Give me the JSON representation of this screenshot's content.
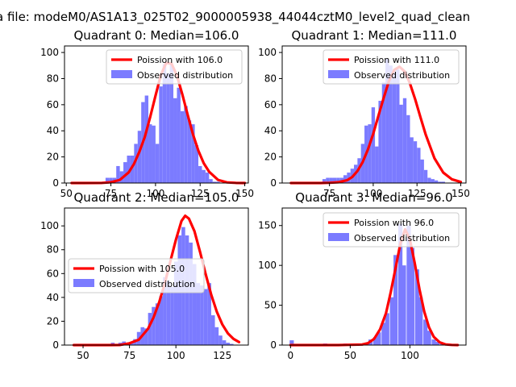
{
  "figure": {
    "suptitle": "a file: modeM0/AS1A13_025T02_9000005938_44044cztM0_level2_quad_clean"
  },
  "colors": {
    "poisson_line": "#ff0000",
    "observed_bars": "#7b7bff"
  },
  "chart_data": [
    {
      "type": "bar",
      "title": "Quadrant 0: Median=106.0",
      "median": 106.0,
      "xlim": [
        49,
        152
      ],
      "ylim": [
        0,
        105
      ],
      "xticks": [
        50,
        75,
        100,
        125,
        150
      ],
      "yticks": [
        0,
        20,
        40,
        60,
        80,
        100
      ],
      "grid": false,
      "legend_position": "upper right",
      "series": [
        {
          "name": "Poission with 106.0",
          "kind": "line",
          "x": [
            53,
            60,
            70,
            75,
            80,
            85,
            88,
            91,
            94,
            97,
            100,
            103,
            106,
            109,
            112,
            115,
            118,
            121,
            124,
            127,
            130,
            135,
            140,
            145,
            150
          ],
          "y": [
            0,
            0,
            0.1,
            0.6,
            2.4,
            8.2,
            14.8,
            24.1,
            35.3,
            50.5,
            66.9,
            82.8,
            92.1,
            91.4,
            82.3,
            68.0,
            52.3,
            37.2,
            24.8,
            15.2,
            8.7,
            2.4,
            0.5,
            0.1,
            0
          ]
        },
        {
          "name": "Observed distribution",
          "kind": "bar",
          "bin_width": 2,
          "x": [
            73,
            75,
            77,
            79,
            81,
            83,
            85,
            87,
            89,
            91,
            93,
            95,
            97,
            99,
            101,
            103,
            105,
            107,
            109,
            111,
            113,
            115,
            117,
            119,
            121,
            123,
            125,
            127,
            129,
            131,
            133,
            135
          ],
          "y": [
            4,
            4,
            4,
            13,
            9,
            16,
            21,
            21,
            30,
            40,
            62,
            67,
            45,
            44,
            30,
            74,
            91,
            84,
            91,
            65,
            73,
            55,
            59,
            48,
            45,
            29,
            13,
            10,
            8,
            3,
            1,
            1
          ]
        }
      ]
    },
    {
      "type": "bar",
      "title": "Quadrant 1: Median=111.0",
      "median": 111.0,
      "xlim": [
        48,
        153
      ],
      "ylim": [
        0,
        105
      ],
      "xticks": [
        75,
        100,
        125,
        150
      ],
      "yticks": [
        0,
        20,
        40,
        60,
        80,
        100
      ],
      "grid": false,
      "legend_position": "upper right",
      "series": [
        {
          "name": "Poission with 111.0",
          "kind": "line",
          "x": [
            53,
            60,
            70,
            75,
            80,
            85,
            88,
            91,
            94,
            97,
            100,
            103,
            106,
            109,
            112,
            115,
            118,
            121,
            124,
            127,
            130,
            135,
            140,
            145,
            150
          ],
          "y": [
            0,
            0,
            0,
            0.2,
            0.6,
            2.1,
            4.6,
            9.2,
            16.1,
            25.8,
            37.7,
            51.7,
            65.3,
            78.2,
            86.6,
            89.1,
            85.4,
            76.2,
            64.0,
            50.3,
            37.0,
            18.9,
            8.0,
            2.8,
            0.8
          ]
        },
        {
          "name": "Observed distribution",
          "kind": "bar",
          "bin_width": 2,
          "x": [
            72,
            74,
            76,
            78,
            80,
            82,
            84,
            86,
            88,
            90,
            92,
            94,
            96,
            98,
            100,
            102,
            104,
            106,
            108,
            110,
            112,
            114,
            116,
            118,
            120,
            122,
            124,
            126,
            128,
            130,
            132,
            134,
            136,
            138,
            140
          ],
          "y": [
            3,
            4,
            4,
            4,
            4,
            4,
            6,
            8,
            11,
            14,
            19,
            30,
            44,
            45,
            58,
            28,
            63,
            77,
            95,
            90,
            85,
            87,
            60,
            65,
            52,
            35,
            32,
            27,
            18,
            10,
            4,
            3,
            2,
            1,
            1
          ]
        }
      ]
    },
    {
      "type": "bar",
      "title": "Quadrant 2: Median=105.0",
      "median": 105.0,
      "xlim": [
        40,
        139
      ],
      "ylim": [
        0,
        115
      ],
      "xticks": [
        50,
        75,
        100,
        125
      ],
      "yticks": [
        0,
        20,
        40,
        60,
        80,
        100
      ],
      "grid": false,
      "legend_position": "center left",
      "series": [
        {
          "name": "Poission with 105.0",
          "kind": "line",
          "x": [
            45,
            55,
            65,
            70,
            75,
            80,
            85,
            88,
            91,
            94,
            97,
            100,
            103,
            105,
            107,
            110,
            113,
            116,
            119,
            122,
            125,
            128,
            131,
            134
          ],
          "y": [
            0,
            0,
            0,
            0.1,
            1.5,
            4.5,
            13.7,
            23.4,
            36.0,
            51.7,
            70.2,
            88.4,
            104.1,
            108.5,
            106.1,
            95.5,
            78.2,
            59.7,
            42.4,
            28.1,
            17.3,
            9.8,
            5.2,
            2.5
          ]
        },
        {
          "name": "Observed distribution",
          "kind": "bar",
          "bin_width": 2,
          "x": [
            66,
            68,
            70,
            72,
            74,
            76,
            78,
            80,
            82,
            84,
            86,
            88,
            90,
            92,
            94,
            96,
            98,
            100,
            102,
            104,
            106,
            108,
            110,
            112,
            114,
            116,
            118,
            120,
            122,
            124,
            126,
            128,
            130
          ],
          "y": [
            2,
            1,
            2,
            3,
            2,
            2,
            5,
            11,
            15,
            14,
            27,
            32,
            35,
            41,
            57,
            54,
            49,
            70,
            92,
            99,
            92,
            86,
            68,
            52,
            50,
            47,
            52,
            25,
            15,
            8,
            4,
            2,
            1
          ]
        }
      ]
    },
    {
      "type": "bar",
      "title": "Quadrant 3: Median=96.0",
      "median": 96.0,
      "xlim": [
        -7,
        147
      ],
      "ylim": [
        0,
        172
      ],
      "xticks": [
        0,
        50,
        100
      ],
      "yticks": [
        0,
        50,
        100,
        150
      ],
      "grid": false,
      "legend_position": "upper right",
      "series": [
        {
          "name": "Poission with 96.0",
          "kind": "line",
          "x": [
            0,
            20,
            40,
            60,
            65,
            70,
            75,
            80,
            84,
            88,
            92,
            96,
            100,
            104,
            108,
            112,
            116,
            120,
            125,
            130,
            135,
            140
          ],
          "y": [
            0,
            0,
            0,
            0.7,
            2.5,
            7.8,
            19.8,
            40.2,
            66.8,
            96.7,
            127.3,
            145.2,
            132.5,
            103.1,
            70.1,
            42.1,
            22.3,
            10.3,
            3.4,
            0.8,
            0.2,
            0
          ]
        },
        {
          "name": "Observed distribution",
          "kind": "bar",
          "bin_width": 3.5,
          "x": [
            1,
            29,
            46,
            60,
            64,
            67,
            71,
            74,
            78,
            81,
            85,
            88,
            92,
            95,
            99,
            102,
            106,
            109,
            113,
            116,
            120,
            123,
            127
          ],
          "y": [
            6,
            2,
            2,
            2,
            3,
            7,
            10,
            16,
            28,
            40,
            60,
            113,
            152,
            100,
            150,
            122,
            95,
            60,
            32,
            18,
            7,
            4,
            2
          ]
        }
      ]
    }
  ]
}
